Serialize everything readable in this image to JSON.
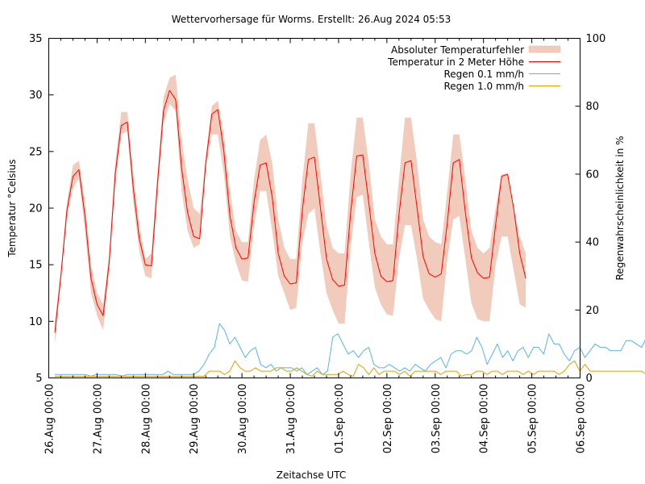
{
  "chart_data": {
    "type": "line",
    "title": "Wettervorhersage für Worms. Erstellt: 26.Aug 2024 05:53",
    "xlabel": "Zeitachse UTC",
    "ylabel": "Temperatur °Celsius",
    "y2label": "Regenwahrscheinlichkeit in %",
    "xlim": [
      "26.Aug 00:00",
      "06.Sep 00:00"
    ],
    "ylim": [
      5,
      35
    ],
    "y2lim": [
      0,
      100
    ],
    "x_tick_labels": [
      "26.Aug 00:00",
      "27.Aug 00:00",
      "28.Aug 00:00",
      "29.Aug 00:00",
      "30.Aug 00:00",
      "31.Aug 00:00",
      "01.Sep 00:00",
      "02.Sep 00:00",
      "03.Sep 00:00",
      "04.Sep 00:00",
      "05.Sep 00:00",
      "06.Sep 00:00"
    ],
    "y_ticks": [
      5,
      10,
      15,
      20,
      25,
      30,
      35
    ],
    "y2_ticks": [
      0,
      20,
      40,
      60,
      80,
      100
    ],
    "grid": false,
    "legend_position": "top-right",
    "time_step_hours": 3,
    "x_start_hour": 3,
    "series": [
      {
        "name": "Absoluter Temperaturfehler",
        "kind": "band",
        "axis": "y",
        "color": "#f1cbbb",
        "lower": [
          8.0,
          13.5,
          19.0,
          21.8,
          22.6,
          18.0,
          12.5,
          10.5,
          9.2,
          14.5,
          22.0,
          26.5,
          26.8,
          20.5,
          16.2,
          14.0,
          13.8,
          21.0,
          27.5,
          29.2,
          28.6,
          21.5,
          18.0,
          16.5,
          16.8,
          23.5,
          26.5,
          26.5,
          23.0,
          17.5,
          15.2,
          13.6,
          13.5,
          18.5,
          21.5,
          21.5,
          18.0,
          14.0,
          12.5,
          11.0,
          11.2,
          17.0,
          19.5,
          20.0,
          16.0,
          12.5,
          11.0,
          9.8,
          9.8,
          16.5,
          21.0,
          21.2,
          17.0,
          13.0,
          11.5,
          10.6,
          10.5,
          15.5,
          18.5,
          18.5,
          15.5,
          12.0,
          11.0,
          10.2,
          10.0,
          15.5,
          19.0,
          19.3,
          15.5,
          11.6,
          10.2,
          10.0,
          10.0,
          15.0,
          17.5,
          17.5,
          14.5,
          11.5,
          11.2
        ],
        "upper": [
          10.0,
          14.5,
          20.5,
          23.8,
          24.2,
          20.5,
          15.0,
          12.5,
          11.5,
          16.0,
          24.0,
          28.5,
          28.5,
          23.0,
          18.5,
          15.5,
          16.0,
          23.0,
          29.8,
          31.5,
          31.8,
          26.0,
          22.5,
          20.0,
          19.5,
          24.5,
          29.0,
          29.5,
          26.5,
          21.5,
          18.0,
          17.0,
          17.0,
          22.5,
          26.0,
          26.5,
          24.0,
          19.0,
          16.5,
          15.5,
          15.5,
          22.5,
          27.5,
          27.5,
          23.0,
          18.5,
          16.5,
          16.0,
          16.0,
          23.0,
          28.0,
          28.0,
          24.0,
          19.0,
          17.5,
          16.8,
          16.8,
          22.5,
          28.0,
          28.0,
          24.0,
          19.0,
          17.5,
          17.0,
          16.8,
          21.5,
          26.5,
          26.5,
          22.5,
          18.0,
          16.5,
          16.0,
          16.5,
          20.0,
          23.0,
          23.0,
          20.0,
          17.5,
          16.0
        ]
      },
      {
        "name": "Temperatur in 2 Meter Höhe",
        "kind": "line",
        "axis": "y",
        "color": "#ff0000",
        "values": [
          9.0,
          14.0,
          19.8,
          22.8,
          23.4,
          19.3,
          13.8,
          11.5,
          10.5,
          15.2,
          23.0,
          27.3,
          27.6,
          21.8,
          17.3,
          15.0,
          14.9,
          22.2,
          28.6,
          30.4,
          29.6,
          23.5,
          19.6,
          17.5,
          17.3,
          24.0,
          28.3,
          28.7,
          25.0,
          19.3,
          16.5,
          15.5,
          15.6,
          20.5,
          23.8,
          24.0,
          21.0,
          16.0,
          14.0,
          13.3,
          13.4,
          19.8,
          24.3,
          24.5,
          20.0,
          15.5,
          13.7,
          13.1,
          13.2,
          19.6,
          24.6,
          24.7,
          20.5,
          16.0,
          14.0,
          13.5,
          13.6,
          19.4,
          24.0,
          24.2,
          20.0,
          15.7,
          14.2,
          13.9,
          14.2,
          18.7,
          24.0,
          24.3,
          19.6,
          15.6,
          14.3,
          13.8,
          13.9,
          18.5,
          22.8,
          23.0,
          20.0,
          16.0,
          13.8
        ]
      },
      {
        "name": "Regen 0.1 mm/h",
        "kind": "line",
        "axis": "y2",
        "color": "#56b4e9",
        "values": [
          1,
          1,
          1,
          1,
          1,
          1,
          1,
          0,
          1,
          1,
          1,
          1,
          1,
          0,
          1,
          1,
          1,
          1,
          1,
          1,
          1,
          1,
          2,
          1,
          1,
          1,
          1,
          1,
          2,
          4,
          7,
          9,
          16,
          14,
          10,
          12,
          9,
          6,
          8,
          9,
          4,
          3,
          4,
          2,
          3,
          3,
          3,
          2,
          3,
          1,
          2,
          3,
          1,
          2,
          12,
          13,
          10,
          7,
          8,
          6,
          8,
          9,
          4,
          3,
          3,
          4,
          3,
          2,
          3,
          2,
          4,
          3,
          2,
          4,
          5,
          6,
          3,
          7,
          8,
          8,
          7,
          8,
          12,
          9,
          4,
          7,
          10,
          6,
          8,
          5,
          8,
          9,
          6,
          9,
          9,
          7,
          13,
          10,
          10,
          7,
          5,
          8,
          9,
          6,
          8,
          10,
          9,
          9,
          8,
          8,
          8,
          11,
          11,
          10,
          9,
          12,
          12,
          8,
          8,
          9,
          10,
          9,
          10,
          8,
          8,
          11,
          12,
          10,
          8,
          12,
          11,
          12,
          10,
          13,
          11,
          11,
          9,
          13,
          12,
          11,
          9
        ]
      },
      {
        "name": "Regen 1.0 mm/h",
        "kind": "line",
        "axis": "y2",
        "color": "#e69f00",
        "values": [
          0,
          0,
          0,
          0,
          0,
          0,
          0,
          0,
          0,
          0,
          0,
          0,
          0,
          0,
          0,
          0,
          0,
          0,
          0,
          0,
          0,
          0,
          0,
          0,
          0,
          0,
          0,
          0,
          0,
          0,
          2,
          2,
          2,
          1,
          2,
          5,
          3,
          2,
          2,
          3,
          2,
          2,
          2,
          3,
          3,
          2,
          2,
          3,
          2,
          1,
          0,
          2,
          1,
          1,
          1,
          1,
          2,
          1,
          0,
          4,
          3,
          1,
          3,
          1,
          2,
          2,
          2,
          1,
          2,
          0,
          2,
          2,
          2,
          2,
          2,
          1,
          2,
          2,
          2,
          0,
          1,
          1,
          2,
          2,
          1,
          2,
          2,
          1,
          2,
          2,
          2,
          1,
          2,
          1,
          2,
          2,
          2,
          2,
          1,
          2,
          4,
          5,
          2,
          4,
          2,
          2,
          2,
          2,
          2,
          2,
          2,
          2,
          2,
          2,
          2,
          1,
          2,
          1,
          2,
          2,
          2,
          2,
          4,
          8,
          4,
          4,
          2,
          3,
          2,
          1,
          2,
          2,
          2,
          3,
          3,
          3,
          3,
          3,
          3,
          3,
          3
        ]
      }
    ]
  }
}
